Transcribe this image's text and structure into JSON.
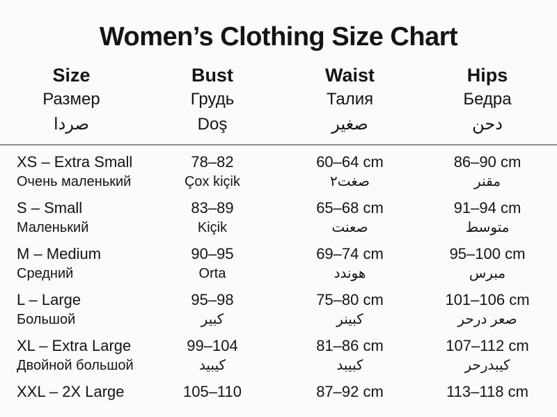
{
  "page": {
    "title": "Women’s Clothing Size Chart"
  },
  "colors": {
    "background": "#fbfbfb",
    "text": "#141414",
    "divider": "#8c8c8c"
  },
  "table": {
    "headers": [
      {
        "en": "Size",
        "ru": "Размер",
        "other": "صردا"
      },
      {
        "en": "Bust",
        "ru": "Грудь",
        "other": "Doş"
      },
      {
        "en": "Waist",
        "ru": "Талия",
        "other": "صغير"
      },
      {
        "en": "Hips",
        "ru": "Бедра",
        "other": "دحن"
      }
    ],
    "rows": [
      {
        "size": "XS – Extra Small",
        "size_sub": "Очень маленький",
        "bust": "78–82",
        "bust_sub": "Çox kiçik",
        "waist": "60–64 cm",
        "waist_sub": "صغت٢",
        "hips": "86–90 cm",
        "hips_sub": "مقنر"
      },
      {
        "size": "S – Small",
        "size_sub": "Маленький",
        "bust": "83–89",
        "bust_sub": "Kiçik",
        "waist": "65–68 cm",
        "waist_sub": "صعنت",
        "hips": "91–94 cm",
        "hips_sub": "متوسط"
      },
      {
        "size": "M – Medium",
        "size_sub": "Средний",
        "bust": "90–95",
        "bust_sub": "Orta",
        "waist": "69–74 cm",
        "waist_sub": "هوندد",
        "hips": "95–100 cm",
        "hips_sub": "مبرس"
      },
      {
        "size": "L – Large",
        "size_sub": "Большой",
        "bust": "95–98",
        "bust_sub": "كبير",
        "waist": "75–80 cm",
        "waist_sub": "كبينر",
        "hips": "101–106 cm",
        "hips_sub": "صعر درحر"
      },
      {
        "size": "XL – Extra Large",
        "size_sub": "Двойной большой",
        "bust": "99–104",
        "bust_sub": "كيبيد",
        "waist": "81–86 cm",
        "waist_sub": "كبيبد",
        "hips": "107–112 cm",
        "hips_sub": "كيبدرحر"
      },
      {
        "size": "XXL – 2X Large",
        "size_sub": "",
        "bust": "105–110",
        "bust_sub": "",
        "waist": "87–92 cm",
        "waist_sub": "",
        "hips": "113–118 cm",
        "hips_sub": ""
      }
    ]
  }
}
